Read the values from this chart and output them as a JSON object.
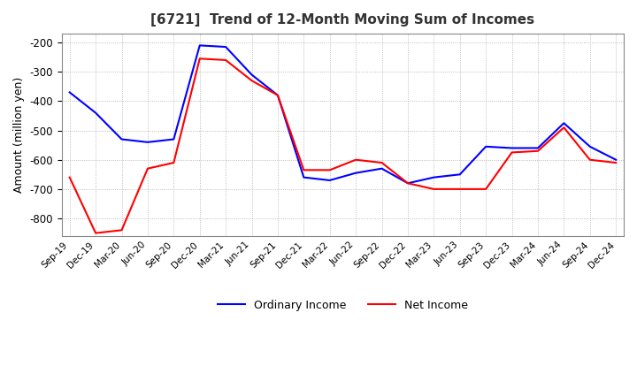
{
  "title": "[6721]  Trend of 12-Month Moving Sum of Incomes",
  "ylabel": "Amount (million yen)",
  "ylim": [
    -860,
    -170
  ],
  "yticks": [
    -800,
    -700,
    -600,
    -500,
    -400,
    -300,
    -200
  ],
  "background_color": "#ffffff",
  "grid_color": "#aaaaaa",
  "ordinary_income_color": "#0000ff",
  "net_income_color": "#ff0000",
  "x_labels": [
    "Sep-19",
    "Dec-19",
    "Mar-20",
    "Jun-20",
    "Sep-20",
    "Dec-20",
    "Mar-21",
    "Jun-21",
    "Sep-21",
    "Dec-21",
    "Mar-22",
    "Jun-22",
    "Sep-22",
    "Dec-22",
    "Mar-23",
    "Jun-23",
    "Sep-23",
    "Dec-23",
    "Mar-24",
    "Jun-24",
    "Sep-24",
    "Dec-24"
  ],
  "ordinary_income": [
    -370,
    -440,
    -530,
    -540,
    -530,
    -210,
    -215,
    -310,
    -380,
    -660,
    -670,
    -645,
    -630,
    -680,
    -660,
    -650,
    -555,
    -560,
    -560,
    -475,
    -555,
    -600
  ],
  "net_income": [
    -660,
    -850,
    -840,
    -630,
    -610,
    -255,
    -260,
    -330,
    -380,
    -635,
    -635,
    -600,
    -610,
    -680,
    -700,
    -700,
    -700,
    -575,
    -570,
    -490,
    -600,
    -610
  ]
}
